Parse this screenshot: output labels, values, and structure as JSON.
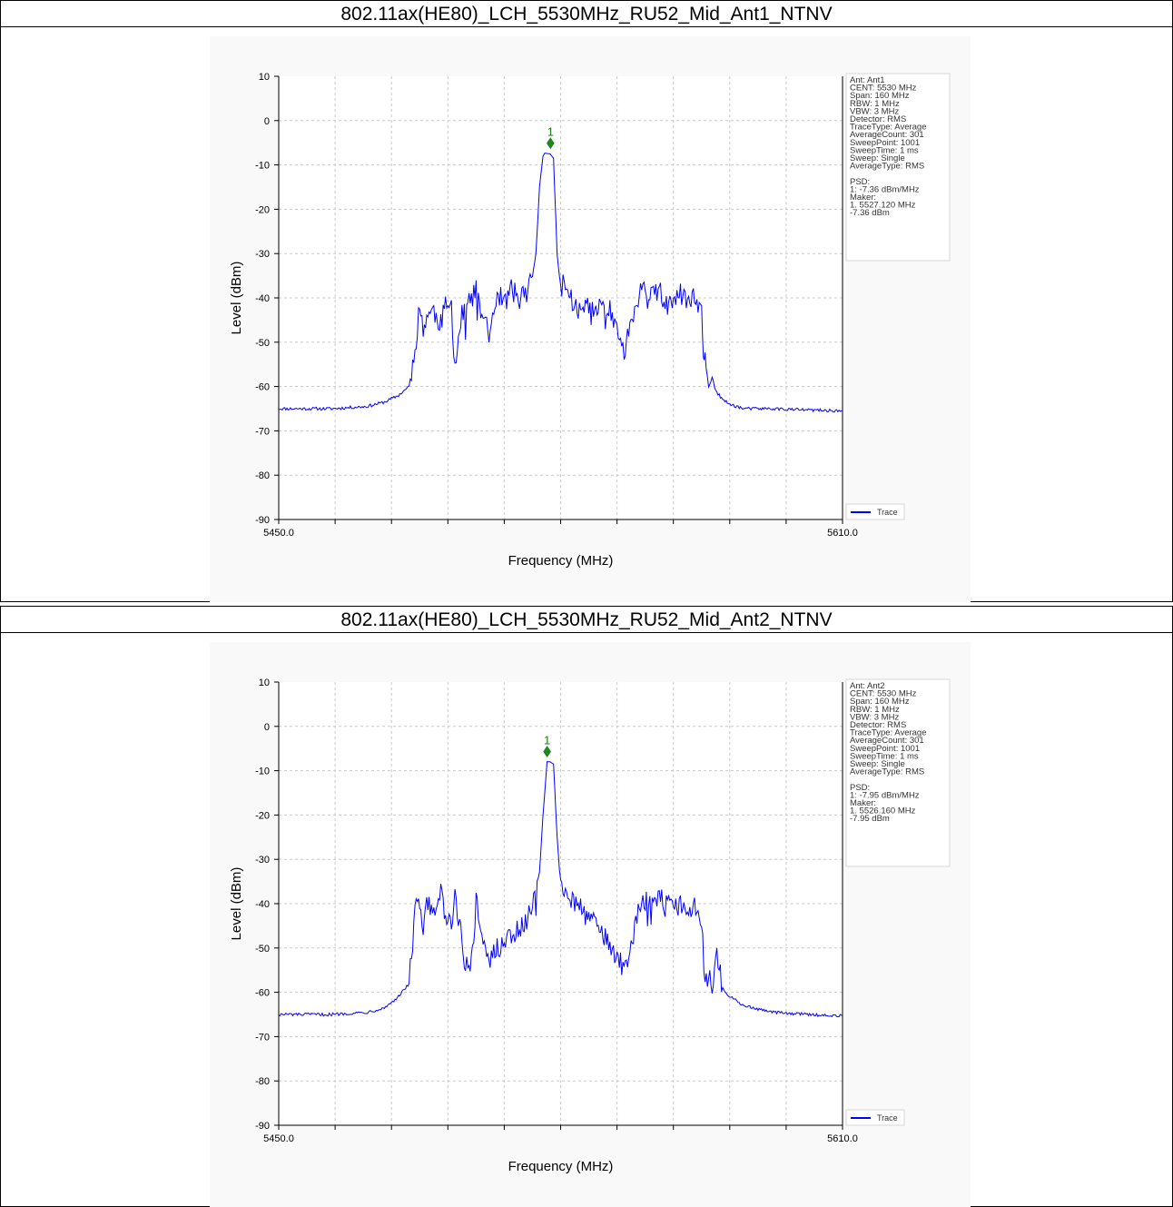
{
  "chart_data": [
    {
      "type": "line",
      "title": "802.11ax(HE80)_LCH_5530MHz_RU52_Mid_Ant1_NTNV",
      "xlabel": "Frequency (MHz)",
      "ylabel": "Level (dBm)",
      "xlim": [
        5450.0,
        5610.0
      ],
      "ylim": [
        -90,
        10
      ],
      "x_tick_labels": [
        "5450.0",
        "5610.0"
      ],
      "y_ticks": [
        10,
        0,
        -10,
        -20,
        -30,
        -40,
        -50,
        -60,
        -70,
        -80,
        -90
      ],
      "grid": true,
      "legend": {
        "position": "bottom-right",
        "label": "Trace"
      },
      "info_lines": [
        "Ant: Ant1",
        "CENT: 5530 MHz",
        "Span: 160 MHz",
        "RBW: 1 MHz",
        "VBW: 3 MHz",
        "Detector: RMS",
        "TraceType: Average",
        "AverageCount: 301",
        "SweepPoint: 1001",
        "SweepTime: 1 ms",
        "Sweep: Single",
        "AverageType: RMS",
        "",
        "PSD:",
        "1: -7.36 dBm/MHz",
        "Maker:",
        "1. 5527.120 MHz",
        "    -7.36 dBm"
      ],
      "marker": {
        "label": "1",
        "x": 5527.12,
        "y": -7.36
      },
      "series": [
        {
          "color": "#0000ff",
          "x": [
            5450,
            5465,
            5475,
            5480,
            5484,
            5487,
            5488,
            5489,
            5490,
            5491,
            5492,
            5494,
            5496,
            5497,
            5499,
            5500,
            5502,
            5504,
            5505,
            5506,
            5507,
            5509,
            5510,
            5512,
            5514,
            5515,
            5516,
            5518,
            5520,
            5522,
            5523,
            5524,
            5525,
            5525.5,
            5526,
            5527,
            5528,
            5529,
            5530,
            5531,
            5532,
            5533,
            5534,
            5536,
            5538,
            5540,
            5542,
            5544,
            5546,
            5548,
            5550,
            5552,
            5553,
            5554,
            5556,
            5558,
            5560,
            5562,
            5564,
            5566,
            5568,
            5570,
            5570.5,
            5571,
            5572,
            5573,
            5574,
            5575,
            5576,
            5578,
            5582,
            5590,
            5600,
            5610
          ],
          "y": [
            -65,
            -65,
            -64.5,
            -63.5,
            -62,
            -60,
            -55,
            -49,
            -42,
            -47,
            -44,
            -43,
            -46,
            -42,
            -43,
            -55,
            -44,
            -41,
            -40,
            -38,
            -43,
            -45,
            -49,
            -39,
            -41,
            -40,
            -38,
            -40,
            -39,
            -35,
            -30,
            -15,
            -8,
            -7.36,
            -7.4,
            -7.5,
            -8.5,
            -30,
            -38,
            -36,
            -39,
            -40,
            -42,
            -43,
            -41,
            -44,
            -40,
            -43,
            -46,
            -53,
            -45,
            -41,
            -38,
            -39,
            -40,
            -38,
            -42,
            -41,
            -39,
            -42,
            -40,
            -44,
            -55,
            -52,
            -60,
            -58,
            -61,
            -62,
            -63,
            -64,
            -65,
            -65,
            -65.3,
            -65.5
          ]
        }
      ]
    },
    {
      "type": "line",
      "title": "802.11ax(HE80)_LCH_5530MHz_RU52_Mid_Ant2_NTNV",
      "xlabel": "Frequency (MHz)",
      "ylabel": "Level (dBm)",
      "xlim": [
        5450.0,
        5610.0
      ],
      "ylim": [
        -90,
        10
      ],
      "x_tick_labels": [
        "5450.0",
        "5610.0"
      ],
      "y_ticks": [
        10,
        0,
        -10,
        -20,
        -30,
        -40,
        -50,
        -60,
        -70,
        -80,
        -90
      ],
      "grid": true,
      "legend": {
        "position": "bottom-right",
        "label": "Trace"
      },
      "info_lines": [
        "Ant: Ant2",
        "CENT: 5530 MHz",
        "Span: 160 MHz",
        "RBW: 1 MHz",
        "VBW: 3 MHz",
        "Detector: RMS",
        "TraceType: Average",
        "AverageCount: 301",
        "SweepPoint: 1001",
        "SweepTime: 1 ms",
        "Sweep: Single",
        "AverageType: RMS",
        "",
        "PSD:",
        "1: -7.95 dBm/MHz",
        "Maker:",
        "1. 5526.160 MHz",
        "    -7.95 dBm"
      ],
      "marker": {
        "label": "1",
        "x": 5526.16,
        "y": -7.95
      },
      "series": [
        {
          "color": "#0000ff",
          "x": [
            5450,
            5465,
            5475,
            5480,
            5484,
            5486,
            5487,
            5488,
            5489,
            5490,
            5491,
            5492,
            5494,
            5496,
            5497,
            5499,
            5500,
            5502,
            5504,
            5505,
            5506,
            5507,
            5508,
            5509,
            5510,
            5512,
            5514,
            5516,
            5518,
            5520,
            5522,
            5523,
            5524,
            5525,
            5526.16,
            5527,
            5528,
            5529,
            5530,
            5531,
            5532,
            5534,
            5536,
            5538,
            5540,
            5542,
            5544,
            5546,
            5548,
            5550,
            5552,
            5554,
            5556,
            5558,
            5560,
            5562,
            5564,
            5566,
            5568,
            5570,
            5571,
            5572,
            5573,
            5574,
            5576,
            5578,
            5582,
            5590,
            5600,
            5610
          ],
          "y": [
            -65,
            -65,
            -64.5,
            -63.5,
            -61,
            -59,
            -57,
            -50,
            -38,
            -42,
            -46,
            -40,
            -42,
            -38,
            -41,
            -45,
            -39,
            -48,
            -55,
            -50,
            -40,
            -43,
            -47,
            -50,
            -52,
            -50,
            -49,
            -48,
            -46,
            -44,
            -40,
            -36,
            -33,
            -20,
            -7.95,
            -8,
            -8.5,
            -25,
            -36,
            -38,
            -37,
            -40,
            -41,
            -44,
            -43,
            -47,
            -50,
            -52,
            -55,
            -50,
            -42,
            -39,
            -41,
            -38,
            -40,
            -41,
            -39,
            -41,
            -40,
            -44,
            -58,
            -55,
            -60,
            -50,
            -59,
            -61,
            -63,
            -64.5,
            -65,
            -65.3
          ]
        }
      ]
    }
  ]
}
